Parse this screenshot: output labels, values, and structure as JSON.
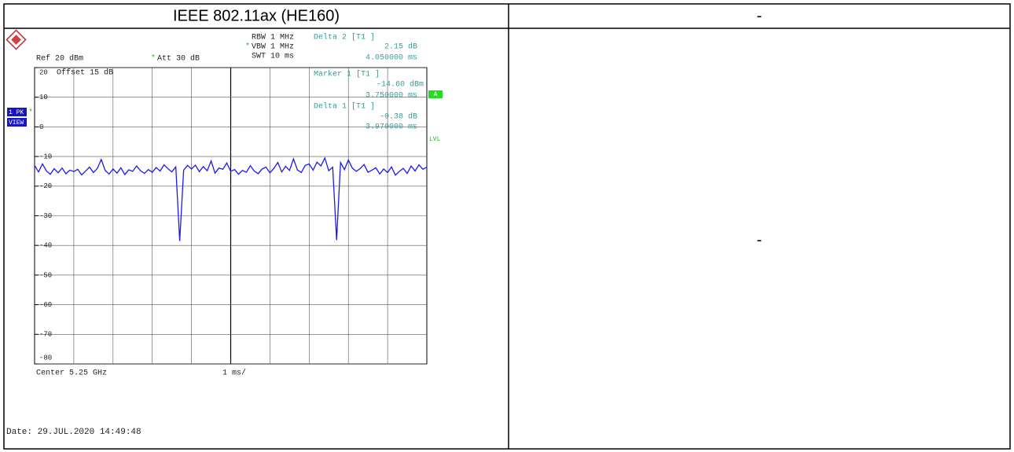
{
  "header": {
    "title": "IEEE 802.11ax (HE160)",
    "right": "-"
  },
  "cell_right": "-",
  "screenshot": {
    "rbw": "RBW 1 MHz",
    "vbw_flag": "*",
    "vbw": "VBW 1 MHz",
    "swt": "SWT 10 ms",
    "ref": "Ref 20 dBm",
    "att_flag": "*",
    "att": "Att 30 dB",
    "offset": "Offset 15 dB",
    "delta2": {
      "label": "Delta 2 [T1 ]",
      "level": "2.15 dB",
      "time": "4.050000 ms"
    },
    "marker1": {
      "label": "Marker 1 [T1 ]",
      "level": "-14.60 dBm",
      "time": "3.750000 ms"
    },
    "delta1": {
      "label": "Delta 1 [T1 ]",
      "level": "-0.38 dB",
      "time": "3.970000 ms"
    },
    "trace_mode": "1 PK",
    "trace_view": "VIEW",
    "trace_flag": "*",
    "a_badge": "A",
    "lvl": "LVL",
    "center": "Center 5.25 GHz",
    "span": "1 ms/",
    "date": "Date: 29.JUL.2020  14:49:48"
  },
  "chart_data": {
    "type": "line",
    "xlim": [
      0,
      10
    ],
    "ylim": [
      -80,
      20
    ],
    "yticks": [
      20,
      10,
      0,
      -10,
      -20,
      -30,
      -40,
      -50,
      -60,
      -70,
      -80
    ],
    "series": [
      {
        "name": "1 PK",
        "color": "#1a1aee",
        "x": [
          0,
          0.1,
          0.2,
          0.3,
          0.4,
          0.5,
          0.6,
          0.7,
          0.8,
          0.9,
          1,
          1.1,
          1.2,
          1.3,
          1.4,
          1.5,
          1.6,
          1.7,
          1.8,
          1.9,
          2,
          2.1,
          2.2,
          2.3,
          2.4,
          2.5,
          2.6,
          2.7,
          2.8,
          2.9,
          3,
          3.1,
          3.2,
          3.3,
          3.4,
          3.5,
          3.6,
          3.7,
          3.8,
          3.9,
          4,
          4.1,
          4.2,
          4.3,
          4.4,
          4.5,
          4.6,
          4.7,
          4.8,
          4.9,
          5,
          5.1,
          5.2,
          5.3,
          5.4,
          5.5,
          5.6,
          5.7,
          5.8,
          5.9,
          6,
          6.1,
          6.2,
          6.3,
          6.4,
          6.5,
          6.6,
          6.7,
          6.8,
          6.9,
          7,
          7.1,
          7.2,
          7.3,
          7.4,
          7.5,
          7.6,
          7.7,
          7.8,
          7.9,
          8,
          8.1,
          8.2,
          8.3,
          8.4,
          8.5,
          8.6,
          8.7,
          8.8,
          8.9,
          9,
          9.1,
          9.2,
          9.3,
          9.4,
          9.5,
          9.6,
          9.7,
          9.8,
          9.9,
          10
        ],
        "values": [
          -13.0,
          -15.2,
          -12.5,
          -14.8,
          -16.0,
          -14.1,
          -15.5,
          -13.9,
          -15.8,
          -14.6,
          -15.1,
          -14.3,
          -16.2,
          -14.9,
          -13.6,
          -15.4,
          -14.0,
          -11.0,
          -14.7,
          -15.9,
          -14.2,
          -15.6,
          -13.8,
          -16.1,
          -14.5,
          -15.0,
          -13.2,
          -14.8,
          -15.7,
          -14.4,
          -15.3,
          -13.7,
          -14.9,
          -12.8,
          -14.1,
          -15.2,
          -13.5,
          -38.5,
          -14.6,
          -13.0,
          -14.2,
          -12.9,
          -15.1,
          -13.4,
          -14.8,
          -11.5,
          -15.6,
          -13.9,
          -14.3,
          -12.2,
          -15.0,
          -14.4,
          -16.0,
          -14.7,
          -15.3,
          -13.1,
          -14.9,
          -15.8,
          -14.2,
          -13.6,
          -15.5,
          -14.0,
          -12.0,
          -15.2,
          -13.3,
          -14.7,
          -10.8,
          -14.5,
          -15.4,
          -13.0,
          -12.5,
          -14.6,
          -11.9,
          -13.2,
          -10.5,
          -14.8,
          -13.6,
          -38.2,
          -12.0,
          -14.4,
          -11.2,
          -13.9,
          -15.0,
          -14.1,
          -12.7,
          -15.3,
          -14.6,
          -13.8,
          -15.9,
          -14.2,
          -15.4,
          -13.5,
          -16.3,
          -15.0,
          -14.0,
          -15.7,
          -13.2,
          -14.9,
          -12.8,
          -14.3,
          -13.6
        ]
      }
    ]
  }
}
